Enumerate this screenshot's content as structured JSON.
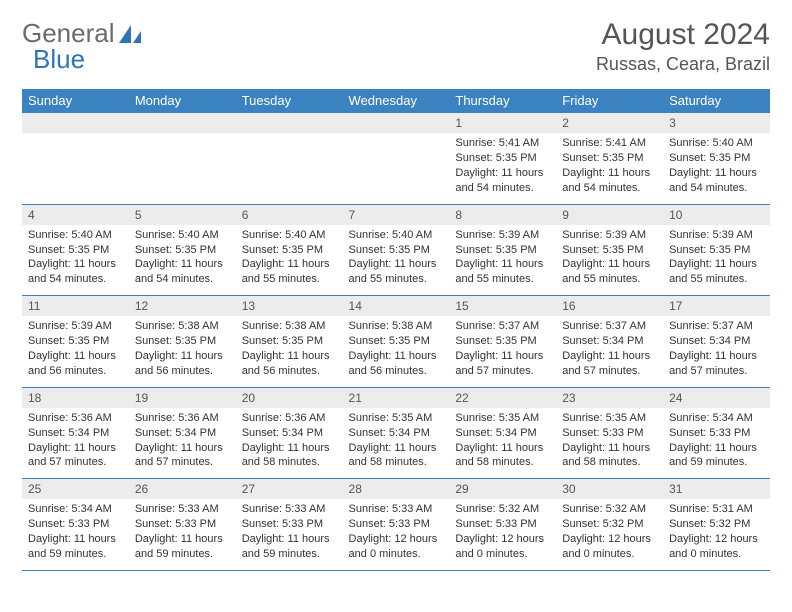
{
  "header": {
    "logo_general": "General",
    "logo_blue": "Blue",
    "month_title": "August 2024",
    "location": "Russas, Ceara, Brazil"
  },
  "colors": {
    "header_bg": "#3b83c0",
    "header_text": "#ffffff",
    "row_border": "#3b83c0",
    "daynum_bg": "#ececec",
    "logo_accent": "#2f74b5"
  },
  "day_headers": [
    "Sunday",
    "Monday",
    "Tuesday",
    "Wednesday",
    "Thursday",
    "Friday",
    "Saturday"
  ],
  "weeks": [
    [
      {
        "num": "",
        "sunrise": "",
        "sunset": "",
        "daylight": ""
      },
      {
        "num": "",
        "sunrise": "",
        "sunset": "",
        "daylight": ""
      },
      {
        "num": "",
        "sunrise": "",
        "sunset": "",
        "daylight": ""
      },
      {
        "num": "",
        "sunrise": "",
        "sunset": "",
        "daylight": ""
      },
      {
        "num": "1",
        "sunrise": "Sunrise: 5:41 AM",
        "sunset": "Sunset: 5:35 PM",
        "daylight": "Daylight: 11 hours and 54 minutes."
      },
      {
        "num": "2",
        "sunrise": "Sunrise: 5:41 AM",
        "sunset": "Sunset: 5:35 PM",
        "daylight": "Daylight: 11 hours and 54 minutes."
      },
      {
        "num": "3",
        "sunrise": "Sunrise: 5:40 AM",
        "sunset": "Sunset: 5:35 PM",
        "daylight": "Daylight: 11 hours and 54 minutes."
      }
    ],
    [
      {
        "num": "4",
        "sunrise": "Sunrise: 5:40 AM",
        "sunset": "Sunset: 5:35 PM",
        "daylight": "Daylight: 11 hours and 54 minutes."
      },
      {
        "num": "5",
        "sunrise": "Sunrise: 5:40 AM",
        "sunset": "Sunset: 5:35 PM",
        "daylight": "Daylight: 11 hours and 54 minutes."
      },
      {
        "num": "6",
        "sunrise": "Sunrise: 5:40 AM",
        "sunset": "Sunset: 5:35 PM",
        "daylight": "Daylight: 11 hours and 55 minutes."
      },
      {
        "num": "7",
        "sunrise": "Sunrise: 5:40 AM",
        "sunset": "Sunset: 5:35 PM",
        "daylight": "Daylight: 11 hours and 55 minutes."
      },
      {
        "num": "8",
        "sunrise": "Sunrise: 5:39 AM",
        "sunset": "Sunset: 5:35 PM",
        "daylight": "Daylight: 11 hours and 55 minutes."
      },
      {
        "num": "9",
        "sunrise": "Sunrise: 5:39 AM",
        "sunset": "Sunset: 5:35 PM",
        "daylight": "Daylight: 11 hours and 55 minutes."
      },
      {
        "num": "10",
        "sunrise": "Sunrise: 5:39 AM",
        "sunset": "Sunset: 5:35 PM",
        "daylight": "Daylight: 11 hours and 55 minutes."
      }
    ],
    [
      {
        "num": "11",
        "sunrise": "Sunrise: 5:39 AM",
        "sunset": "Sunset: 5:35 PM",
        "daylight": "Daylight: 11 hours and 56 minutes."
      },
      {
        "num": "12",
        "sunrise": "Sunrise: 5:38 AM",
        "sunset": "Sunset: 5:35 PM",
        "daylight": "Daylight: 11 hours and 56 minutes."
      },
      {
        "num": "13",
        "sunrise": "Sunrise: 5:38 AM",
        "sunset": "Sunset: 5:35 PM",
        "daylight": "Daylight: 11 hours and 56 minutes."
      },
      {
        "num": "14",
        "sunrise": "Sunrise: 5:38 AM",
        "sunset": "Sunset: 5:35 PM",
        "daylight": "Daylight: 11 hours and 56 minutes."
      },
      {
        "num": "15",
        "sunrise": "Sunrise: 5:37 AM",
        "sunset": "Sunset: 5:35 PM",
        "daylight": "Daylight: 11 hours and 57 minutes."
      },
      {
        "num": "16",
        "sunrise": "Sunrise: 5:37 AM",
        "sunset": "Sunset: 5:34 PM",
        "daylight": "Daylight: 11 hours and 57 minutes."
      },
      {
        "num": "17",
        "sunrise": "Sunrise: 5:37 AM",
        "sunset": "Sunset: 5:34 PM",
        "daylight": "Daylight: 11 hours and 57 minutes."
      }
    ],
    [
      {
        "num": "18",
        "sunrise": "Sunrise: 5:36 AM",
        "sunset": "Sunset: 5:34 PM",
        "daylight": "Daylight: 11 hours and 57 minutes."
      },
      {
        "num": "19",
        "sunrise": "Sunrise: 5:36 AM",
        "sunset": "Sunset: 5:34 PM",
        "daylight": "Daylight: 11 hours and 57 minutes."
      },
      {
        "num": "20",
        "sunrise": "Sunrise: 5:36 AM",
        "sunset": "Sunset: 5:34 PM",
        "daylight": "Daylight: 11 hours and 58 minutes."
      },
      {
        "num": "21",
        "sunrise": "Sunrise: 5:35 AM",
        "sunset": "Sunset: 5:34 PM",
        "daylight": "Daylight: 11 hours and 58 minutes."
      },
      {
        "num": "22",
        "sunrise": "Sunrise: 5:35 AM",
        "sunset": "Sunset: 5:34 PM",
        "daylight": "Daylight: 11 hours and 58 minutes."
      },
      {
        "num": "23",
        "sunrise": "Sunrise: 5:35 AM",
        "sunset": "Sunset: 5:33 PM",
        "daylight": "Daylight: 11 hours and 58 minutes."
      },
      {
        "num": "24",
        "sunrise": "Sunrise: 5:34 AM",
        "sunset": "Sunset: 5:33 PM",
        "daylight": "Daylight: 11 hours and 59 minutes."
      }
    ],
    [
      {
        "num": "25",
        "sunrise": "Sunrise: 5:34 AM",
        "sunset": "Sunset: 5:33 PM",
        "daylight": "Daylight: 11 hours and 59 minutes."
      },
      {
        "num": "26",
        "sunrise": "Sunrise: 5:33 AM",
        "sunset": "Sunset: 5:33 PM",
        "daylight": "Daylight: 11 hours and 59 minutes."
      },
      {
        "num": "27",
        "sunrise": "Sunrise: 5:33 AM",
        "sunset": "Sunset: 5:33 PM",
        "daylight": "Daylight: 11 hours and 59 minutes."
      },
      {
        "num": "28",
        "sunrise": "Sunrise: 5:33 AM",
        "sunset": "Sunset: 5:33 PM",
        "daylight": "Daylight: 12 hours and 0 minutes."
      },
      {
        "num": "29",
        "sunrise": "Sunrise: 5:32 AM",
        "sunset": "Sunset: 5:33 PM",
        "daylight": "Daylight: 12 hours and 0 minutes."
      },
      {
        "num": "30",
        "sunrise": "Sunrise: 5:32 AM",
        "sunset": "Sunset: 5:32 PM",
        "daylight": "Daylight: 12 hours and 0 minutes."
      },
      {
        "num": "31",
        "sunrise": "Sunrise: 5:31 AM",
        "sunset": "Sunset: 5:32 PM",
        "daylight": "Daylight: 12 hours and 0 minutes."
      }
    ]
  ]
}
